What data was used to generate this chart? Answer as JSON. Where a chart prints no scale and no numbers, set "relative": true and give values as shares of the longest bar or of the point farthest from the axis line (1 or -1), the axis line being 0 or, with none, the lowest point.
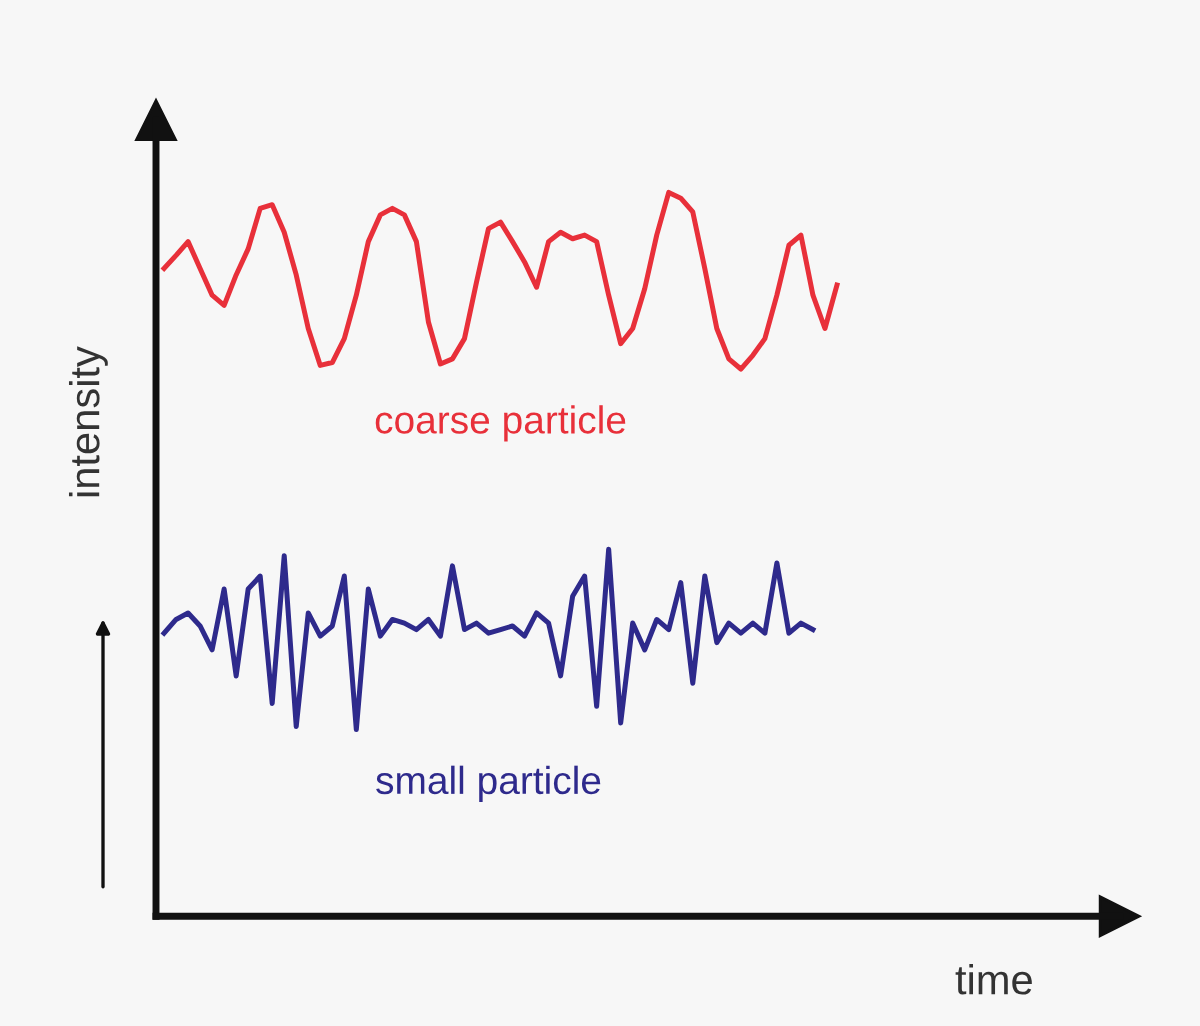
{
  "chart_data": {
    "type": "line",
    "relative": true,
    "xlabel": "time",
    "ylabel": "intensity",
    "legend": false,
    "marker": "none",
    "line_style": "solid",
    "categories": [
      null,
      null,
      null,
      null,
      null,
      null,
      null,
      null,
      null,
      null,
      null,
      null,
      null,
      null,
      null,
      null,
      null,
      null,
      null,
      null,
      null,
      null,
      null,
      null,
      null,
      null,
      null,
      null,
      null,
      null,
      null,
      null,
      null,
      null,
      null,
      null,
      null,
      null,
      null,
      null,
      null,
      null,
      null,
      null,
      null,
      null,
      null,
      null,
      null,
      null,
      null,
      null,
      null,
      null,
      null,
      null,
      null
    ],
    "series": [
      {
        "name": "coarse particle",
        "color": "#e8303a",
        "values": [
          0.895,
          0.913,
          0.932,
          0.895,
          0.858,
          0.844,
          0.886,
          0.922,
          0.978,
          0.983,
          0.945,
          0.886,
          0.812,
          0.761,
          0.765,
          0.798,
          0.858,
          0.932,
          0.969,
          0.978,
          0.969,
          0.932,
          0.821,
          0.763,
          0.77,
          0.798,
          0.876,
          0.95,
          0.959,
          0.932,
          0.904,
          0.869,
          0.932,
          0.945,
          0.936,
          0.941,
          0.932,
          0.858,
          0.791,
          0.812,
          0.867,
          0.941,
          1.0,
          0.992,
          0.973,
          0.895,
          0.812,
          0.77,
          0.756,
          0.775,
          0.798,
          0.858,
          0.927,
          0.941,
          0.858,
          0.812,
          0.872
        ]
      },
      {
        "name": "small particle",
        "color": "#2e2a8c",
        "values": [
          0.391,
          0.41,
          0.419,
          0.401,
          0.368,
          0.452,
          0.332,
          0.452,
          0.47,
          0.294,
          0.498,
          0.262,
          0.419,
          0.387,
          0.401,
          0.47,
          0.258,
          0.452,
          0.387,
          0.41,
          0.405,
          0.396,
          0.41,
          0.387,
          0.484,
          0.396,
          0.405,
          0.391,
          0.396,
          0.401,
          0.387,
          0.419,
          0.405,
          0.332,
          0.442,
          0.47,
          0.29,
          0.507,
          0.267,
          0.405,
          0.368,
          0.41,
          0.396,
          0.461,
          0.322,
          0.47,
          0.378,
          0.405,
          0.391,
          0.405,
          0.391,
          0.488,
          0.391,
          0.405,
          0.396,
          null,
          null
        ]
      }
    ]
  }
}
